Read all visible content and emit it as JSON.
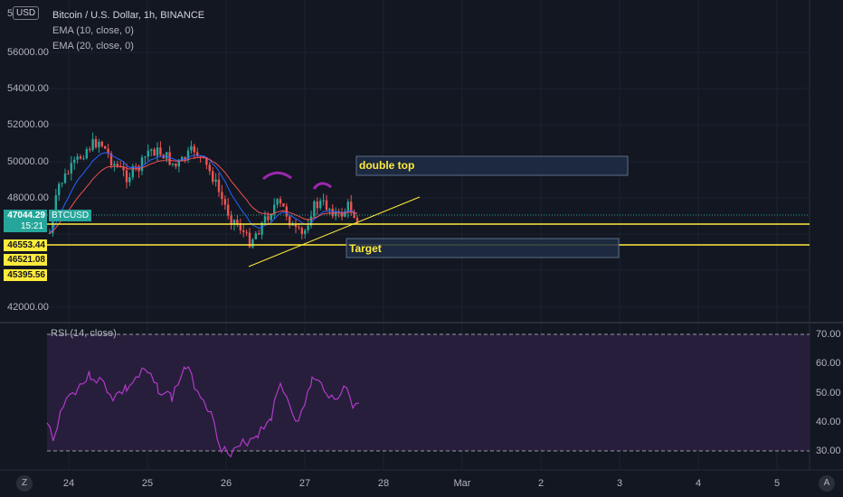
{
  "header": {
    "symbol_title": "Bitcoin / U.S. Dollar, 1h, BINANCE",
    "currency_button": "USD",
    "currency_prefix": "5",
    "ema1": "EMA (10, close, 0)",
    "ema2": "EMA (20, close, 0)"
  },
  "price_axis": {
    "labels": [
      "56000.00",
      "54000.00",
      "52000.00",
      "50000.00",
      "48000.00",
      "42000.00"
    ],
    "last_price": "47044.29",
    "countdown": "15:21",
    "ticker_tag": "BTCUSD",
    "level_tags": [
      "46553.44",
      "46521.08",
      "45395.56"
    ]
  },
  "annotations": {
    "double_top": "double top",
    "target": "Target"
  },
  "rsi": {
    "title": "RSI (14, close)",
    "axis_labels": [
      "70.00",
      "60.00",
      "50.00",
      "40.00",
      "30.00"
    ]
  },
  "time_axis": {
    "labels": [
      "24",
      "25",
      "26",
      "27",
      "28",
      "Mar",
      "2",
      "3",
      "4",
      "5"
    ],
    "left_button": "Z",
    "right_button": "A"
  },
  "colors": {
    "background": "#131722",
    "bull": "#26a69a",
    "bear": "#ef5350",
    "ema_fast": "#2962ff",
    "ema_slow": "#ef5350",
    "level_line": "#ffeb3b",
    "rsi_line": "#b13ac8",
    "rsi_band": "#2a1f3f",
    "double_top_arc": "#9c27b0"
  }
}
